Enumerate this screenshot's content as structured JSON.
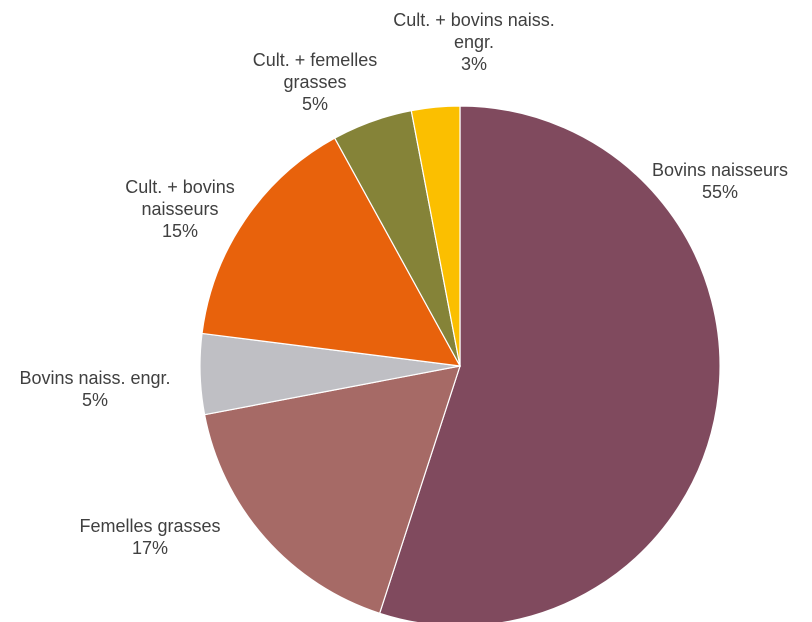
{
  "chart_data": {
    "type": "pie",
    "start": "top",
    "direction": "clockwise",
    "slices": [
      {
        "name": "Bovins naisseurs",
        "value": 55,
        "label_lines": [
          "Bovins naisseurs",
          "55%"
        ],
        "color": "#804a5e"
      },
      {
        "name": "Femelles grasses",
        "value": 17,
        "label_lines": [
          "Femelles grasses",
          "17%"
        ],
        "color": "#a66a66"
      },
      {
        "name": "Bovins naiss. engr.",
        "value": 5,
        "label_lines": [
          "Bovins naiss. engr.",
          "5%"
        ],
        "color": "#bfbfc4"
      },
      {
        "name": "Cult. + bovins naisseurs",
        "value": 15,
        "label_lines": [
          "Cult. + bovins",
          "naisseurs",
          "15%"
        ],
        "color": "#e8620c"
      },
      {
        "name": "Cult. + femelles grasses",
        "value": 5,
        "label_lines": [
          "Cult. + femelles",
          "grasses",
          "5%"
        ],
        "color": "#858338"
      },
      {
        "name": "Cult. + bovins naiss. engr.",
        "value": 3,
        "label_lines": [
          "Cult. + bovins naiss.",
          "engr.",
          "3%"
        ],
        "color": "#fbbf00"
      }
    ]
  }
}
